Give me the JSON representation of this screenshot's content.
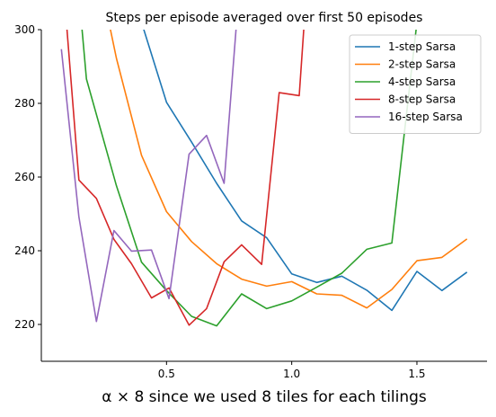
{
  "chart_data": {
    "type": "line",
    "title": "Steps per episode averaged over first 50 episodes",
    "xlabel": "α × 8 since we used 8 tiles for each tilings",
    "ylabel": "",
    "xlim": [
      0.0,
      1.78
    ],
    "ylim": [
      210,
      300
    ],
    "xticks": [
      0.5,
      1.0,
      1.5
    ],
    "xtick_labels": [
      "0.5",
      "1.0",
      "1.5"
    ],
    "yticks": [
      220,
      240,
      260,
      280,
      300
    ],
    "ytick_labels": [
      "220",
      "240",
      "260",
      "280",
      "300"
    ],
    "grid": false,
    "legend_position": "top-right",
    "series": [
      {
        "name": "1-step Sarsa",
        "color": "#1f77b4",
        "x": [
          0.4,
          0.5,
          0.6,
          0.7,
          0.8,
          0.9,
          1.0,
          1.1,
          1.2,
          1.3,
          1.4,
          1.5,
          1.6,
          1.7
        ],
        "y": [
          302,
          280.3,
          269.5,
          258.3,
          248.1,
          243.5,
          233.7,
          231.4,
          233.1,
          229.3,
          223.8,
          234.4,
          229.2,
          234.2
        ]
      },
      {
        "name": "2-step Sarsa",
        "color": "#ff7f0e",
        "x": [
          0.27,
          0.3,
          0.4,
          0.5,
          0.6,
          0.7,
          0.8,
          0.9,
          1.0,
          1.1,
          1.2,
          1.3,
          1.4,
          1.5,
          1.6,
          1.7
        ],
        "y": [
          302,
          292.2,
          265.9,
          250.6,
          242.5,
          236.5,
          232.3,
          230.4,
          231.6,
          228.3,
          227.9,
          224.5,
          229.5,
          237.3,
          238.2,
          243.2
        ]
      },
      {
        "name": "4-step Sarsa",
        "color": "#2ca02c",
        "x": [
          0.16,
          0.18,
          0.3,
          0.4,
          0.5,
          0.6,
          0.7,
          0.8,
          0.9,
          1.0,
          1.1,
          1.2,
          1.3,
          1.4,
          1.5
        ],
        "y": [
          302,
          286.6,
          257.6,
          236.9,
          229.2,
          222.2,
          219.6,
          228.3,
          224.3,
          226.4,
          230.1,
          233.9,
          240.4,
          242.1,
          302
        ]
      },
      {
        "name": "8-step Sarsa",
        "color": "#d62728",
        "x": [
          0.1,
          0.15,
          0.22,
          0.29,
          0.36,
          0.44,
          0.51,
          0.59,
          0.66,
          0.73,
          0.8,
          0.88,
          0.95,
          1.03,
          1.05
        ],
        "y": [
          302,
          259.2,
          254.2,
          243.1,
          236.5,
          227.2,
          229.9,
          219.8,
          224.3,
          237,
          241.6,
          236.3,
          282.9,
          282.1,
          302
        ]
      },
      {
        "name": "16-step Sarsa",
        "color": "#9467bd",
        "x": [
          0.08,
          0.15,
          0.22,
          0.29,
          0.36,
          0.44,
          0.51,
          0.59,
          0.66,
          0.73,
          0.78
        ],
        "y": [
          294.7,
          249.2,
          220.8,
          245.5,
          239.9,
          240.2,
          227,
          266.2,
          271.3,
          258.3,
          302
        ]
      }
    ]
  }
}
